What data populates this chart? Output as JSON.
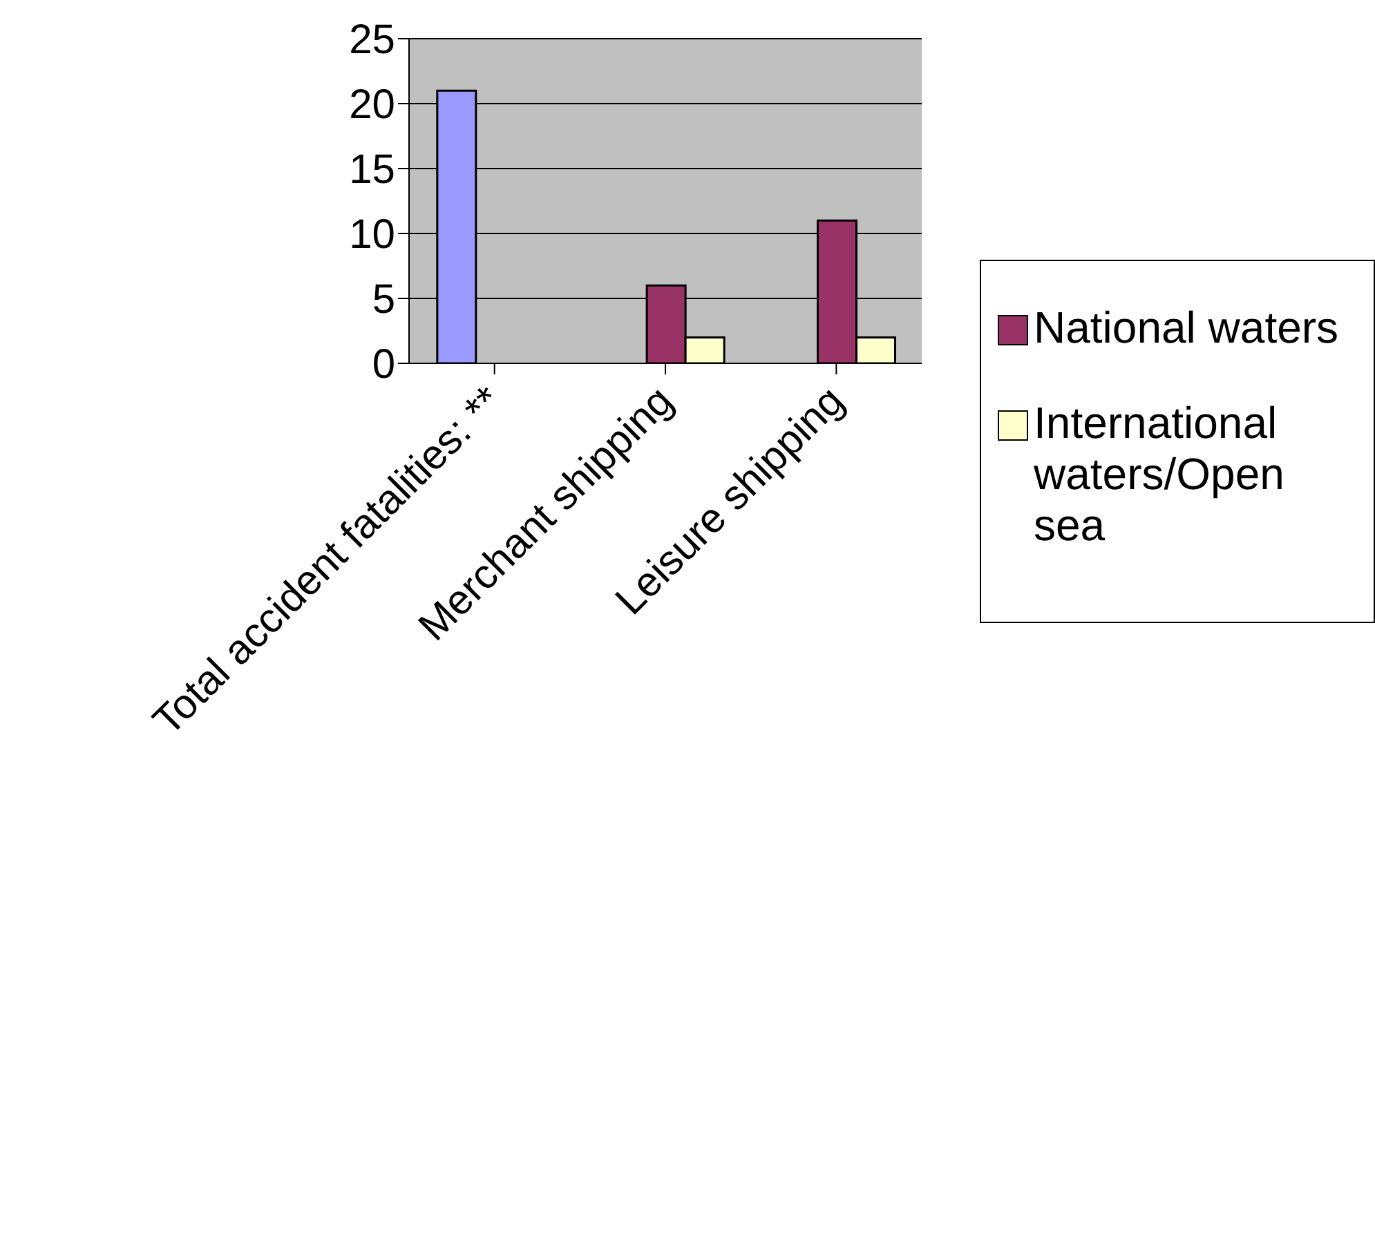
{
  "chart_data": {
    "type": "bar",
    "categories": [
      "Total accident fatalities: **",
      "Merchant shipping",
      "Leisure shipping"
    ],
    "series": [
      {
        "color": "#9999ff",
        "values": [
          21,
          null,
          null
        ]
      },
      {
        "name": "National waters",
        "color": "#993366",
        "values": [
          null,
          6,
          11
        ]
      },
      {
        "name": "International waters/Open sea",
        "color": "#ffffcc",
        "values": [
          null,
          2,
          2
        ]
      }
    ],
    "ylim": [
      0,
      25
    ],
    "yticks": [
      0,
      5,
      10,
      15,
      20,
      25
    ],
    "grid": "y",
    "legend": "right"
  }
}
